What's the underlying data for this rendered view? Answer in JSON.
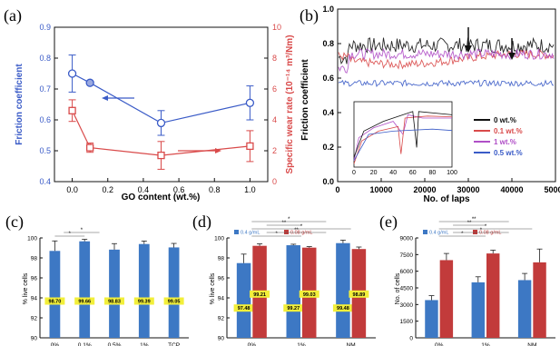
{
  "colors": {
    "blue": "#3a5bc7",
    "red": "#d94a4a",
    "black": "#111111",
    "purple": "#b04fc7",
    "bar_blue": "#3d78c4",
    "bar_red": "#c23b3b",
    "label_yellow": "#f2ef3a"
  },
  "chart_data": [
    {
      "id": "a",
      "panel_label": "(a)",
      "type": "line",
      "xlabel": "GO content (wt.%)",
      "ylabel_left": "Friction coefficient",
      "ylabel_right": "Specific wear rate (10⁻¹⁴ m³/Nm)",
      "xlim": [
        -0.1,
        1.1
      ],
      "xticks": [
        "0.0",
        "0.2",
        "0.4",
        "0.6",
        "0.8",
        "1.0"
      ],
      "ylim_left": [
        0.4,
        0.9
      ],
      "yticks_left": [
        "0.4",
        "0.5",
        "0.6",
        "0.7",
        "0.8",
        "0.9"
      ],
      "ylim_right": [
        0,
        10
      ],
      "yticks_right": [
        "0",
        "2",
        "4",
        "6",
        "8",
        "10"
      ],
      "series": [
        {
          "axis": "left",
          "x": [
            0,
            0.1,
            0.5,
            1.0
          ],
          "y": [
            0.75,
            0.72,
            0.59,
            0.655
          ],
          "err": [
            0.06,
            0,
            0.04,
            0.055
          ],
          "color": "blue",
          "marker": "circle"
        },
        {
          "axis": "right",
          "x": [
            0,
            0.1,
            0.5,
            1.0
          ],
          "y": [
            4.6,
            2.2,
            1.7,
            2.3
          ],
          "err": [
            0.7,
            0.3,
            0.9,
            1.0
          ],
          "color": "red",
          "marker": "square"
        }
      ],
      "annotations": [
        "arrow-left-to-friction",
        "arrow-right-to-wear"
      ]
    },
    {
      "id": "b",
      "panel_label": "(b)",
      "type": "line",
      "xlabel": "No. of laps",
      "ylabel": "Friction coefficient",
      "xlim": [
        0,
        50000
      ],
      "xticks": [
        "0",
        "10000",
        "20000",
        "30000",
        "40000",
        "50000"
      ],
      "ylim": [
        0,
        1.0
      ],
      "yticks": [
        "0.0",
        "0.2",
        "0.4",
        "0.6",
        "0.8",
        "1.0"
      ],
      "series": [
        {
          "name": "0 wt.%",
          "color": "black",
          "level": 0.79
        },
        {
          "name": "0.1 wt.%",
          "color": "red",
          "level": 0.71
        },
        {
          "name": "1 wt.%",
          "color": "purple",
          "level": 0.74
        },
        {
          "name": "0.5 wt.%",
          "color": "blue",
          "level": 0.57
        }
      ],
      "arrows_at": [
        30000,
        40000
      ],
      "inset": {
        "xticks": [
          "0",
          "20",
          "40",
          "60",
          "80",
          "100"
        ],
        "xlim": [
          0,
          100
        ]
      }
    },
    {
      "id": "c",
      "panel_label": "(c)",
      "type": "bar",
      "ylabel": "% live cells",
      "ylim": [
        90,
        100
      ],
      "yticks": [
        "90",
        "92",
        "94",
        "96",
        "98",
        "100"
      ],
      "categories": [
        "0%",
        "0.1%",
        "0.5%",
        "1%",
        "TCP"
      ],
      "values": [
        98.7,
        99.66,
        98.83,
        99.39,
        99.05
      ],
      "errors": [
        1.0,
        0.2,
        0.6,
        0.3,
        0.4
      ],
      "data_labels": [
        "98.70",
        "99.66",
        "98.83",
        "99.39",
        "99.05"
      ],
      "significance": [
        "*",
        "*"
      ]
    },
    {
      "id": "d",
      "panel_label": "(d)",
      "type": "bar",
      "ylabel": "% live cells",
      "ylim": [
        90,
        100
      ],
      "yticks": [
        "90",
        "92",
        "94",
        "96",
        "98",
        "100"
      ],
      "categories": [
        "0%",
        "1%",
        "NM"
      ],
      "series": [
        {
          "name": "0.4 g/mL",
          "values": [
            97.48,
            99.27,
            99.48
          ],
          "errors": [
            0.9,
            0.1,
            0.3
          ],
          "labels": [
            "97.48",
            "99.27",
            "99.48"
          ]
        },
        {
          "name": "0.08 g/mL",
          "values": [
            99.21,
            99.03,
            98.89
          ],
          "errors": [
            0.2,
            0.1,
            0.2
          ],
          "labels": [
            "99.21",
            "99.03",
            "98.89"
          ]
        }
      ],
      "significance": [
        "*",
        "**",
        "*",
        "**",
        "*"
      ]
    },
    {
      "id": "e",
      "panel_label": "(e)",
      "type": "bar",
      "ylabel": "No. of cells",
      "ylim": [
        0,
        9000
      ],
      "yticks": [
        "0",
        "1500",
        "3000",
        "4500",
        "6000",
        "7500",
        "9000"
      ],
      "categories": [
        "0%",
        "1%",
        "NM"
      ],
      "series": [
        {
          "name": "0.4 g/mL",
          "values": [
            3400,
            5000,
            5200
          ],
          "errors": [
            400,
            500,
            600
          ]
        },
        {
          "name": "0.08 g/mL",
          "values": [
            7000,
            7600,
            6800
          ],
          "errors": [
            600,
            300,
            1200
          ]
        }
      ],
      "significance": [
        "*",
        "*",
        "*",
        "**",
        "**"
      ]
    }
  ]
}
